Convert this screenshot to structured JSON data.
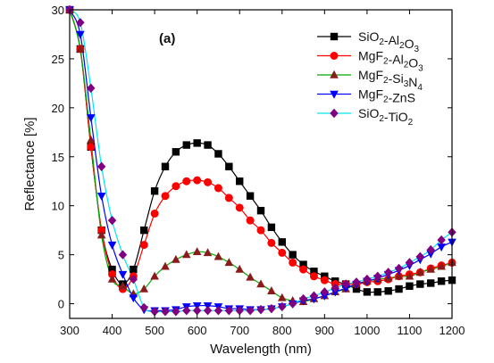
{
  "chart_data": {
    "type": "line",
    "panel_label": "(a)",
    "xlabel": "Wavelength (nm)",
    "ylabel": "Reflectance [%]",
    "xlim": [
      300,
      1200
    ],
    "ylim": [
      -1.5,
      30
    ],
    "xticks": [
      300,
      400,
      500,
      600,
      700,
      800,
      900,
      1000,
      1100,
      1200
    ],
    "yticks": [
      0,
      5,
      10,
      15,
      20,
      25,
      30
    ],
    "grid": false,
    "legend_position": "top-right",
    "series": [
      {
        "legend": [
          {
            "t": "SiO"
          },
          {
            "t": "2",
            "sub": true
          },
          {
            "t": "-Al"
          },
          {
            "t": "2",
            "sub": true
          },
          {
            "t": "O"
          },
          {
            "t": "3",
            "sub": true
          }
        ],
        "color": "#000000",
        "marker": "square",
        "points": [
          [
            300,
            30
          ],
          [
            325,
            26
          ],
          [
            350,
            16
          ],
          [
            375,
            7.5
          ],
          [
            400,
            3.5
          ],
          [
            425,
            2
          ],
          [
            450,
            3.5
          ],
          [
            475,
            7.5
          ],
          [
            500,
            11.5
          ],
          [
            525,
            14
          ],
          [
            550,
            15.5
          ],
          [
            575,
            16.2
          ],
          [
            600,
            16.4
          ],
          [
            625,
            16.2
          ],
          [
            650,
            15.3
          ],
          [
            675,
            14
          ],
          [
            700,
            12.5
          ],
          [
            725,
            11
          ],
          [
            750,
            9.5
          ],
          [
            775,
            7.8
          ],
          [
            800,
            6.3
          ],
          [
            825,
            5
          ],
          [
            850,
            4
          ],
          [
            875,
            3.3
          ],
          [
            900,
            2.8
          ],
          [
            925,
            2.3
          ],
          [
            950,
            2
          ],
          [
            975,
            1.5
          ],
          [
            1000,
            1.2
          ],
          [
            1025,
            1.2
          ],
          [
            1050,
            1.3
          ],
          [
            1075,
            1.5
          ],
          [
            1100,
            1.8
          ],
          [
            1125,
            2
          ],
          [
            1150,
            2.1
          ],
          [
            1175,
            2.3
          ],
          [
            1200,
            2.4
          ]
        ]
      },
      {
        "legend": [
          {
            "t": "MgF"
          },
          {
            "t": "2",
            "sub": true
          },
          {
            "t": "-Al"
          },
          {
            "t": "2",
            "sub": true
          },
          {
            "t": "O"
          },
          {
            "t": "3",
            "sub": true
          }
        ],
        "color": "#ff0000",
        "marker": "circle",
        "points": [
          [
            300,
            30
          ],
          [
            325,
            26
          ],
          [
            350,
            16
          ],
          [
            375,
            7.5
          ],
          [
            400,
            3
          ],
          [
            425,
            1.5
          ],
          [
            450,
            2.8
          ],
          [
            475,
            6
          ],
          [
            500,
            9.2
          ],
          [
            525,
            11
          ],
          [
            550,
            12
          ],
          [
            575,
            12.5
          ],
          [
            600,
            12.6
          ],
          [
            625,
            12.4
          ],
          [
            650,
            11.8
          ],
          [
            675,
            10.8
          ],
          [
            700,
            9.8
          ],
          [
            725,
            8.5
          ],
          [
            750,
            7.5
          ],
          [
            775,
            6.2
          ],
          [
            800,
            5.2
          ],
          [
            825,
            4.2
          ],
          [
            850,
            3.5
          ],
          [
            875,
            2.8
          ],
          [
            900,
            2.4
          ],
          [
            925,
            2
          ],
          [
            950,
            2
          ],
          [
            975,
            2
          ],
          [
            1000,
            2.2
          ],
          [
            1025,
            2.3
          ],
          [
            1050,
            2.5
          ],
          [
            1075,
            2.8
          ],
          [
            1100,
            3
          ],
          [
            1125,
            3.2
          ],
          [
            1150,
            3.6
          ],
          [
            1175,
            3.9
          ],
          [
            1200,
            4.2
          ]
        ]
      },
      {
        "legend": [
          {
            "t": "MgF"
          },
          {
            "t": "2",
            "sub": true
          },
          {
            "t": "-Si"
          },
          {
            "t": "3",
            "sub": true
          },
          {
            "t": "N"
          },
          {
            "t": "4",
            "sub": true
          }
        ],
        "color": "#00aa00",
        "markerColor": "#8b1a1a",
        "marker": "triangle-up",
        "points": [
          [
            300,
            30
          ],
          [
            325,
            26
          ],
          [
            350,
            16.7
          ],
          [
            375,
            7
          ],
          [
            400,
            2.5
          ],
          [
            425,
            1.8
          ],
          [
            450,
            1
          ],
          [
            475,
            1.5
          ],
          [
            500,
            2.8
          ],
          [
            525,
            3.8
          ],
          [
            550,
            4.5
          ],
          [
            575,
            5
          ],
          [
            600,
            5.3
          ],
          [
            625,
            5.2
          ],
          [
            650,
            4.8
          ],
          [
            675,
            4.2
          ],
          [
            700,
            3.5
          ],
          [
            725,
            2.7
          ],
          [
            750,
            2
          ],
          [
            775,
            1.3
          ],
          [
            800,
            0.6
          ],
          [
            825,
            0.3
          ],
          [
            850,
            0.2
          ],
          [
            875,
            0.5
          ],
          [
            900,
            0.8
          ],
          [
            925,
            1.2
          ],
          [
            950,
            1.5
          ],
          [
            975,
            2
          ],
          [
            1000,
            2.3
          ],
          [
            1025,
            2.5
          ],
          [
            1050,
            2.6
          ],
          [
            1075,
            2.8
          ],
          [
            1100,
            2.8
          ],
          [
            1125,
            3.2
          ],
          [
            1150,
            3.5
          ],
          [
            1175,
            3.8
          ],
          [
            1200,
            4.2
          ]
        ]
      },
      {
        "legend": [
          {
            "t": "MgF"
          },
          {
            "t": "2",
            "sub": true
          },
          {
            "t": "-ZnS"
          }
        ],
        "color": "#0000ff",
        "marker": "triangle-down",
        "points": [
          [
            300,
            30
          ],
          [
            325,
            27.5
          ],
          [
            350,
            19
          ],
          [
            375,
            11
          ],
          [
            400,
            6
          ],
          [
            425,
            3
          ],
          [
            450,
            0.6
          ],
          [
            475,
            -0.6
          ],
          [
            500,
            -0.7
          ],
          [
            525,
            -0.7
          ],
          [
            550,
            -0.6
          ],
          [
            575,
            -0.3
          ],
          [
            600,
            -0.2
          ],
          [
            625,
            -0.2
          ],
          [
            650,
            -0.3
          ],
          [
            675,
            -0.5
          ],
          [
            700,
            -0.5
          ],
          [
            725,
            -0.6
          ],
          [
            750,
            -0.6
          ],
          [
            775,
            -0.5
          ],
          [
            800,
            -0.3
          ],
          [
            825,
            0
          ],
          [
            850,
            0.3
          ],
          [
            875,
            0.5
          ],
          [
            900,
            0.8
          ],
          [
            925,
            1.2
          ],
          [
            950,
            1.6
          ],
          [
            975,
            2
          ],
          [
            1000,
            2.3
          ],
          [
            1025,
            2.6
          ],
          [
            1050,
            3
          ],
          [
            1075,
            3.4
          ],
          [
            1100,
            3.9
          ],
          [
            1125,
            4.5
          ],
          [
            1150,
            5.1
          ],
          [
            1175,
            5.8
          ],
          [
            1200,
            6.3
          ]
        ]
      },
      {
        "legend": [
          {
            "t": "SiO"
          },
          {
            "t": "2",
            "sub": true
          },
          {
            "t": "-TiO"
          },
          {
            "t": "2",
            "sub": true
          }
        ],
        "color": "#00e5ee",
        "markerColor": "#800080",
        "marker": "diamond",
        "points": [
          [
            300,
            30
          ],
          [
            325,
            28.7
          ],
          [
            350,
            22
          ],
          [
            375,
            14
          ],
          [
            400,
            8.5
          ],
          [
            425,
            5
          ],
          [
            450,
            2.5
          ],
          [
            475,
            -0.4
          ],
          [
            500,
            -0.8
          ],
          [
            525,
            -0.8
          ],
          [
            550,
            -0.8
          ],
          [
            575,
            -0.7
          ],
          [
            600,
            -0.7
          ],
          [
            625,
            -0.7
          ],
          [
            650,
            -0.7
          ],
          [
            675,
            -0.7
          ],
          [
            700,
            -0.7
          ],
          [
            725,
            -0.7
          ],
          [
            750,
            -0.6
          ],
          [
            775,
            -0.5
          ],
          [
            800,
            -0.3
          ],
          [
            825,
            0
          ],
          [
            850,
            0.5
          ],
          [
            875,
            0.8
          ],
          [
            900,
            1.2
          ],
          [
            925,
            1.6
          ],
          [
            950,
            2
          ],
          [
            975,
            2.2
          ],
          [
            1000,
            2.5
          ],
          [
            1025,
            2.8
          ],
          [
            1050,
            3.2
          ],
          [
            1075,
            3.6
          ],
          [
            1100,
            4.2
          ],
          [
            1125,
            4.8
          ],
          [
            1150,
            5.5
          ],
          [
            1175,
            6.5
          ],
          [
            1200,
            7.3
          ]
        ]
      }
    ]
  }
}
